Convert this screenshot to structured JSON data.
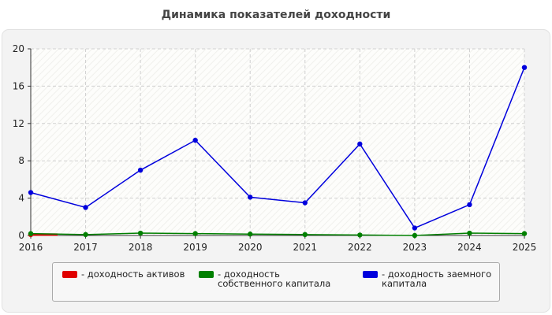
{
  "title": "Динамика показателей доходности",
  "chart_data": {
    "type": "line",
    "title": "Динамика показателей доходности",
    "x": [
      "2016",
      "2017",
      "2018",
      "2019",
      "2020",
      "2021",
      "2022",
      "2023",
      "2024",
      "2025"
    ],
    "ylim": [
      0,
      20
    ],
    "yticks": [
      0,
      4,
      8,
      12,
      16,
      20
    ],
    "grid": true,
    "legend_position": "bottom",
    "series": [
      {
        "name": "- доходность активов",
        "color": "#e00000",
        "values": [
          0.1,
          null,
          null,
          null,
          null,
          null,
          null,
          null,
          null,
          null
        ]
      },
      {
        "name": "- доходность собственного капитала",
        "color": "#008000",
        "values": [
          0.2,
          0.1,
          0.25,
          0.2,
          0.15,
          0.1,
          0.05,
          0.0,
          0.25,
          0.2
        ]
      },
      {
        "name": "- доходность заемного капитала",
        "color": "#0000dd",
        "values": [
          4.6,
          3.0,
          7.0,
          10.2,
          4.1,
          3.5,
          9.8,
          0.8,
          3.3,
          18.0
        ]
      }
    ]
  }
}
